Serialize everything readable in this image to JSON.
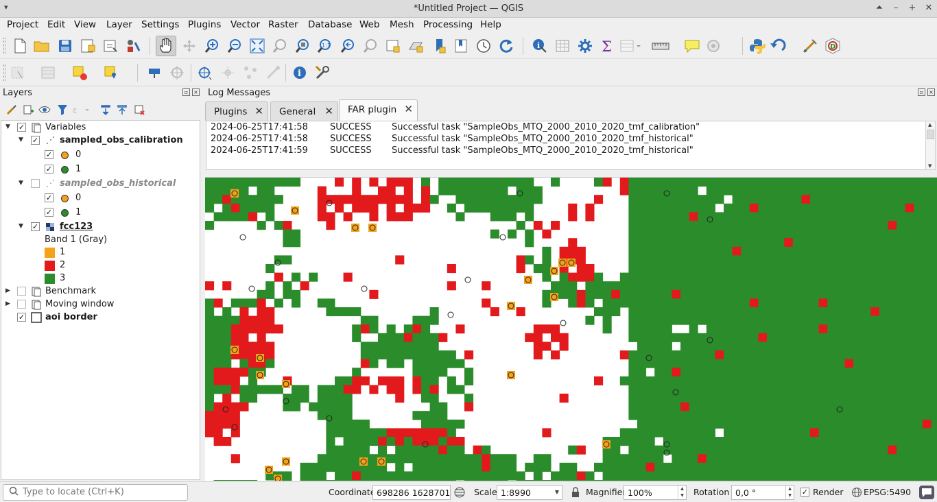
{
  "window": {
    "title": "*Untitled Project — QGIS"
  },
  "menubar": [
    "Project",
    "Edit",
    "View",
    "Layer",
    "Settings",
    "Plugins",
    "Vector",
    "Raster",
    "Database",
    "Web",
    "Mesh",
    "Processing",
    "Help"
  ],
  "layers_panel": {
    "title": "Layers",
    "tree": {
      "variables": "Variables",
      "calibration": "sampled_obs_calibration",
      "historical": "sampled_obs_historical",
      "class0": "0",
      "class1": "1",
      "fcc": "fcc123",
      "band": "Band 1 (Gray)",
      "legend": [
        "1",
        "2",
        "3"
      ],
      "benchmark": "Benchmark",
      "moving_window": "Moving window",
      "aoi": "aoi border"
    },
    "legend_colors": [
      "#f5a21b",
      "#e31a1c",
      "#2a8c2a"
    ],
    "point_colors": [
      "#f5a21b",
      "#2a8c2a"
    ]
  },
  "log_panel": {
    "title": "Log Messages",
    "tabs": [
      "Plugins",
      "General",
      "FAR plugin"
    ],
    "active_tab": "FAR plugin",
    "lines": [
      {
        "time": "2024-06-25T17:41:58",
        "level": "SUCCESS",
        "message": "Successful task \"SampleObs_MTQ_2000_2010_2020_tmf_calibration\""
      },
      {
        "time": "2024-06-25T17:41:58",
        "level": "SUCCESS",
        "message": "Successful task \"SampleObs_MTQ_2000_2010_2020_tmf_historical\""
      },
      {
        "time": "2024-06-25T17:41:59",
        "level": "SUCCESS",
        "message": "Successful task \"SampleObs_MTQ_2000_2010_2020_tmf_historical\""
      }
    ]
  },
  "statusbar": {
    "locate_placeholder": "Type to locate (Ctrl+K)",
    "coordinate_label": "Coordinate",
    "coordinate_value": "698286  1628701",
    "scale_label": "Scale",
    "scale_value": "1:8990",
    "magnifier_label": "Magnifier",
    "magnifier_value": "100%",
    "rotation_label": "Rotation",
    "rotation_value": "0,0 °",
    "render_label": "Render",
    "crs": "EPSG:5490"
  },
  "map_colors": {
    "forest": "#2a8c2a",
    "deforested": "#e31a1c",
    "sample": "#f5a21b",
    "background": "#ffffff"
  }
}
